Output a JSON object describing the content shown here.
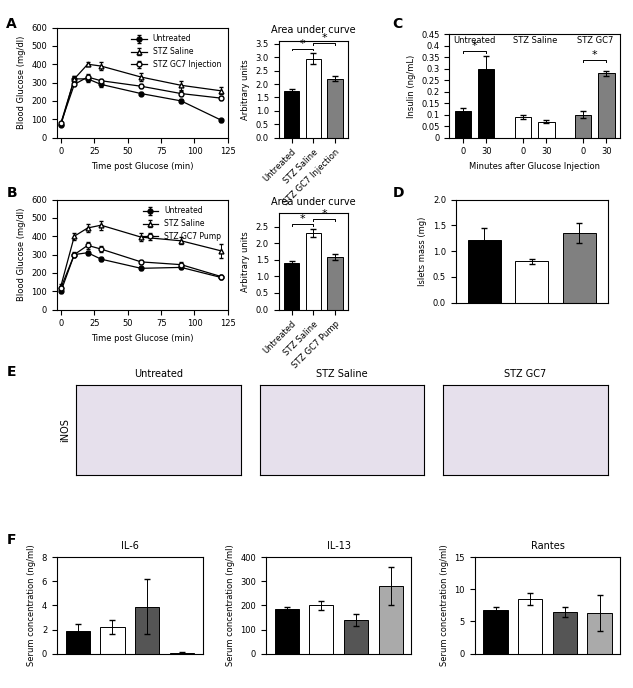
{
  "chart_data": [
    {
      "panel": "A",
      "type": "line",
      "x": [
        0,
        10,
        20,
        30,
        60,
        90,
        120
      ],
      "xlabel": "Time post Glucose (min)",
      "ylabel": "Blood Glucose (mg/dl)",
      "xlim": [
        -3,
        125
      ],
      "xticks": [
        0,
        25,
        50,
        75,
        100,
        125
      ],
      "ylim": [
        0,
        600
      ],
      "yticks": [
        0,
        100,
        200,
        300,
        400,
        500,
        600
      ],
      "legend": "upper right",
      "series": [
        {
          "name": "Untreated",
          "color": "#000000",
          "marker": "circle",
          "values": [
            70,
            320,
            320,
            290,
            240,
            200,
            95
          ],
          "errors": [
            5,
            15,
            15,
            12,
            10,
            10,
            8
          ]
        },
        {
          "name": "STZ Saline",
          "color": "#ffffff",
          "marker": "triangle",
          "values": [
            80,
            320,
            400,
            390,
            330,
            285,
            255
          ],
          "errors": [
            5,
            15,
            10,
            20,
            20,
            25,
            20
          ]
        },
        {
          "name": "STZ GC7 Injection",
          "color": "#ffffff",
          "marker": "circle",
          "values": [
            80,
            290,
            330,
            310,
            280,
            240,
            215
          ],
          "errors": [
            5,
            10,
            15,
            12,
            12,
            15,
            12
          ]
        }
      ]
    },
    {
      "type": "bar",
      "title": "Area under curve",
      "ylabel": "Arbitrary units",
      "categories": [
        "Untreated",
        "STZ Saline",
        "STZ GC7 Injection"
      ],
      "values": [
        1.75,
        2.95,
        2.2
      ],
      "errors": [
        0.08,
        0.2,
        0.1
      ],
      "colors": [
        "#000000",
        "#ffffff",
        "#808080"
      ],
      "ylim": [
        0,
        3.6
      ],
      "yticks": [
        {
          "value": 0,
          "label": "0.0"
        },
        {
          "value": 0.5,
          "label": "0.5"
        },
        {
          "value": 1,
          "label": "1.0"
        },
        {
          "value": 1.5,
          "label": "1.5"
        },
        {
          "value": 2,
          "label": "2.0"
        },
        {
          "value": 2.5,
          "label": "2.5"
        },
        {
          "value": 3,
          "label": "3.0"
        },
        {
          "value": 3.5,
          "label": "3.5"
        }
      ],
      "annotations": [
        {
          "text": "*",
          "between": [
            0,
            1
          ]
        },
        {
          "text": "*",
          "between": [
            1,
            2
          ]
        }
      ]
    },
    {
      "panel": "C",
      "type": "bar",
      "ylabel": "Insulin (ng/mL)",
      "xlabel": "Minutes after Glucose Injection",
      "categories": [
        "0",
        "30",
        "0",
        "30",
        "0",
        "30"
      ],
      "values": [
        0.115,
        0.3,
        0.09,
        0.07,
        0.1,
        0.28
      ],
      "errors": [
        0.015,
        0.055,
        0.01,
        0.008,
        0.015,
        0.01
      ],
      "colors": [
        "#000000",
        "#000000",
        "#ffffff",
        "#ffffff",
        "#808080",
        "#808080"
      ],
      "groups": [
        {
          "label": "Untreated",
          "members": [
            0,
            1
          ]
        },
        {
          "label": "STZ Saline",
          "members": [
            2,
            3
          ]
        },
        {
          "label": "STZ GC7",
          "members": [
            4,
            5
          ]
        }
      ],
      "annotations": [
        {
          "text": "*",
          "between": [
            0,
            1
          ]
        },
        {
          "text": "*",
          "between": [
            4,
            5
          ]
        }
      ],
      "ylim": [
        0,
        0.45
      ],
      "yticks": [
        0,
        0.05,
        0.1,
        0.15,
        0.2,
        0.25,
        0.3,
        0.35,
        0.4,
        0.45
      ]
    },
    {
      "panel": "B",
      "type": "line",
      "x": [
        0,
        10,
        20,
        30,
        60,
        90,
        120
      ],
      "xlabel": "Time post Glucose (min)",
      "ylabel": "Blood Glucose (mg/dl)",
      "xlim": [
        -3,
        125
      ],
      "xticks": [
        0,
        25,
        50,
        75,
        100,
        125
      ],
      "ylim": [
        0,
        600
      ],
      "yticks": [
        0,
        100,
        200,
        300,
        400,
        500,
        600
      ],
      "legend": "upper right",
      "series": [
        {
          "name": "Untreated",
          "color": "#000000",
          "marker": "circle",
          "values": [
            100,
            300,
            310,
            275,
            225,
            230,
            175
          ],
          "errors": [
            8,
            10,
            10,
            10,
            8,
            10,
            10
          ]
        },
        {
          "name": "STZ Saline",
          "color": "#ffffff",
          "marker": "triangle",
          "values": [
            130,
            400,
            445,
            460,
            395,
            375,
            320
          ],
          "errors": [
            10,
            20,
            20,
            25,
            20,
            20,
            40
          ]
        },
        {
          "name": "STZ GC7 Pump",
          "color": "#ffffff",
          "marker": "circle",
          "values": [
            120,
            300,
            350,
            330,
            260,
            245,
            180
          ],
          "errors": [
            8,
            15,
            20,
            15,
            12,
            12,
            10
          ]
        }
      ]
    },
    {
      "type": "bar",
      "title": "Area under curve",
      "ylabel": "Arbitrary units",
      "categories": [
        "Untreated",
        "STZ Saline",
        "STZ GC7 Pump"
      ],
      "values": [
        1.4,
        2.3,
        1.58
      ],
      "errors": [
        0.05,
        0.12,
        0.08
      ],
      "colors": [
        "#000000",
        "#ffffff",
        "#808080"
      ],
      "ylim": [
        0,
        2.9
      ],
      "yticks": [
        {
          "value": 0,
          "label": "0.0"
        },
        {
          "value": 0.5,
          "label": "0.5"
        },
        {
          "value": 1,
          "label": "1.0"
        },
        {
          "value": 1.5,
          "label": "1.5"
        },
        {
          "value": 2,
          "label": "2.0"
        },
        {
          "value": 2.5,
          "label": "2.5"
        }
      ],
      "annotations": [
        {
          "text": "*",
          "between": [
            0,
            1
          ]
        },
        {
          "text": "*",
          "between": [
            1,
            2
          ]
        }
      ]
    },
    {
      "panel": "D",
      "type": "bar",
      "ylabel": "Islets mass (mg)",
      "categories": [
        null,
        null,
        null
      ],
      "tick_labels": "y",
      "values": [
        1.22,
        0.8,
        1.35
      ],
      "errors": [
        0.22,
        0.05,
        0.2
      ],
      "colors": [
        "#000000",
        "#ffffff",
        "#808080"
      ],
      "ylim": [
        0,
        2.0
      ],
      "yticks": [
        {
          "value": 0,
          "label": "0.0"
        },
        {
          "value": 0.5,
          "label": "0.5"
        },
        {
          "value": 1,
          "label": "1.0"
        },
        {
          "value": 1.5,
          "label": "1.5"
        },
        {
          "value": 2,
          "label": "2.0"
        }
      ]
    },
    {
      "panel": "E",
      "type": "image",
      "ylabel": "iNOS",
      "titles": [
        "Untreated",
        "STZ Saline",
        "STZ GC7"
      ]
    },
    {
      "panel": "F",
      "type": "bar",
      "title": "IL-6",
      "ylabel": "Serum concentration (ng/ml)",
      "categories": [
        null,
        null,
        null,
        null
      ],
      "tick_labels": "y",
      "values": [
        1.9,
        2.2,
        3.9,
        0.05
      ],
      "errors": [
        0.6,
        0.6,
        2.3,
        0.05
      ],
      "colors": [
        "#000000",
        "#ffffff",
        "#555555",
        "#aaaaaa"
      ],
      "ylim": [
        0,
        8
      ],
      "yticks": [
        0,
        2,
        4,
        6,
        8
      ]
    },
    {
      "type": "bar",
      "title": "IL-13",
      "ylabel": "Serum concentration (ng/ml)",
      "categories": [
        null,
        null,
        null,
        null
      ],
      "tick_labels": "y",
      "values": [
        185,
        200,
        140,
        280
      ],
      "errors": [
        8,
        20,
        25,
        80
      ],
      "colors": [
        "#000000",
        "#ffffff",
        "#555555",
        "#aaaaaa"
      ],
      "ylim": [
        0,
        400
      ],
      "yticks": [
        0,
        100,
        200,
        300,
        400
      ]
    },
    {
      "type": "bar",
      "title": "Rantes",
      "ylabel": "Serum concentration (ng/ml)",
      "categories": [
        null,
        null,
        null,
        null
      ],
      "tick_labels": "y",
      "values": [
        6.8,
        8.5,
        6.5,
        6.3
      ],
      "errors": [
        0.5,
        1.0,
        0.8,
        2.8
      ],
      "colors": [
        "#000000",
        "#ffffff",
        "#555555",
        "#aaaaaa"
      ],
      "ylim": [
        0,
        15
      ],
      "yticks": [
        0,
        5,
        10,
        15
      ]
    }
  ]
}
